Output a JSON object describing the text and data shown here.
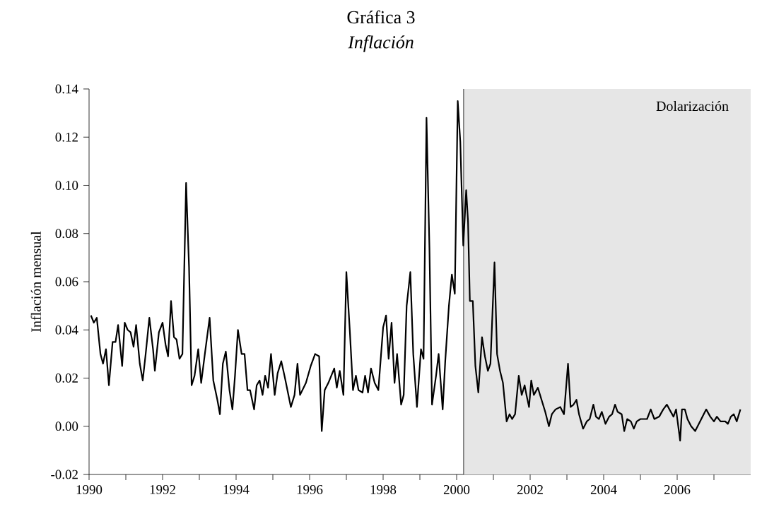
{
  "chart_data": {
    "type": "line",
    "title": "Gráfica 3",
    "subtitle": "Inflación",
    "ylabel": "Inflación mensual",
    "x": [
      1990.05,
      1990.13,
      1990.21,
      1990.31,
      1990.38,
      1990.46,
      1990.54,
      1990.64,
      1990.72,
      1990.79,
      1990.9,
      1990.97,
      1991.05,
      1991.13,
      1991.21,
      1991.28,
      1991.38,
      1991.46,
      1991.54,
      1991.64,
      1991.74,
      1991.79,
      1991.9,
      1992.0,
      1992.08,
      1992.15,
      1992.23,
      1992.31,
      1992.38,
      1992.46,
      1992.54,
      1992.64,
      1992.72,
      1992.79,
      1992.87,
      1992.97,
      1993.05,
      1993.15,
      1993.28,
      1993.38,
      1993.49,
      1993.56,
      1993.64,
      1993.72,
      1993.82,
      1993.9,
      1993.97,
      1994.05,
      1994.15,
      1994.23,
      1994.31,
      1994.38,
      1994.49,
      1994.56,
      1994.64,
      1994.72,
      1994.79,
      1994.87,
      1994.95,
      1995.05,
      1995.13,
      1995.23,
      1995.33,
      1995.49,
      1995.59,
      1995.67,
      1995.74,
      1995.9,
      1996.03,
      1996.15,
      1996.26,
      1996.33,
      1996.41,
      1996.51,
      1996.67,
      1996.74,
      1996.82,
      1996.92,
      1997.0,
      1997.1,
      1997.18,
      1997.26,
      1997.33,
      1997.44,
      1997.51,
      1997.59,
      1997.67,
      1997.77,
      1997.87,
      1998.0,
      1998.08,
      1998.15,
      1998.23,
      1998.31,
      1998.38,
      1998.49,
      1998.56,
      1998.64,
      1998.74,
      1998.82,
      1998.92,
      1999.03,
      1999.1,
      1999.18,
      1999.26,
      1999.33,
      1999.44,
      1999.51,
      1999.62,
      1999.69,
      1999.79,
      1999.87,
      1999.95,
      2000.03,
      2000.1,
      2000.18,
      2000.26,
      2000.31,
      2000.36,
      2000.44,
      2000.51,
      2000.59,
      2000.69,
      2000.77,
      2000.85,
      2000.92,
      2001.03,
      2001.1,
      2001.18,
      2001.26,
      2001.36,
      2001.44,
      2001.51,
      2001.59,
      2001.69,
      2001.77,
      2001.85,
      2001.9,
      2001.97,
      2002.03,
      2002.1,
      2002.21,
      2002.31,
      2002.41,
      2002.51,
      2002.59,
      2002.69,
      2002.82,
      2002.92,
      2003.03,
      2003.1,
      2003.18,
      2003.26,
      2003.33,
      2003.44,
      2003.54,
      2003.62,
      2003.72,
      2003.79,
      2003.87,
      2003.95,
      2004.05,
      2004.15,
      2004.23,
      2004.31,
      2004.38,
      2004.49,
      2004.56,
      2004.64,
      2004.74,
      2004.82,
      2004.9,
      2005.0,
      2005.08,
      2005.18,
      2005.28,
      2005.38,
      2005.51,
      2005.62,
      2005.72,
      2005.79,
      2005.9,
      2005.97,
      2006.08,
      2006.13,
      2006.21,
      2006.28,
      2006.38,
      2006.49,
      2006.59,
      2006.69,
      2006.79,
      2006.9,
      2007.0,
      2007.08,
      2007.18,
      2007.31,
      2007.38,
      2007.46,
      2007.54,
      2007.62,
      2007.72
    ],
    "series": [
      {
        "color": "#000000",
        "values": [
          0.046,
          0.043,
          0.045,
          0.03,
          0.026,
          0.032,
          0.017,
          0.035,
          0.035,
          0.042,
          0.025,
          0.043,
          0.04,
          0.039,
          0.033,
          0.042,
          0.026,
          0.019,
          0.03,
          0.045,
          0.032,
          0.023,
          0.039,
          0.043,
          0.034,
          0.029,
          0.052,
          0.037,
          0.036,
          0.028,
          0.03,
          0.101,
          0.066,
          0.017,
          0.021,
          0.032,
          0.018,
          0.03,
          0.045,
          0.019,
          0.011,
          0.005,
          0.026,
          0.031,
          0.015,
          0.007,
          0.021,
          0.04,
          0.03,
          0.03,
          0.015,
          0.015,
          0.007,
          0.017,
          0.019,
          0.013,
          0.021,
          0.016,
          0.03,
          0.013,
          0.022,
          0.027,
          0.02,
          0.008,
          0.013,
          0.026,
          0.013,
          0.018,
          0.025,
          0.03,
          0.029,
          -0.002,
          0.015,
          0.018,
          0.024,
          0.016,
          0.023,
          0.013,
          0.064,
          0.038,
          0.015,
          0.021,
          0.015,
          0.014,
          0.021,
          0.014,
          0.024,
          0.018,
          0.015,
          0.041,
          0.046,
          0.028,
          0.043,
          0.018,
          0.03,
          0.009,
          0.013,
          0.05,
          0.064,
          0.03,
          0.008,
          0.032,
          0.028,
          0.128,
          0.074,
          0.009,
          0.021,
          0.03,
          0.007,
          0.027,
          0.05,
          0.063,
          0.055,
          0.135,
          0.118,
          0.075,
          0.098,
          0.085,
          0.052,
          0.052,
          0.025,
          0.014,
          0.037,
          0.029,
          0.023,
          0.026,
          0.068,
          0.03,
          0.023,
          0.018,
          0.002,
          0.005,
          0.003,
          0.005,
          0.021,
          0.013,
          0.017,
          0.013,
          0.008,
          0.019,
          0.013,
          0.016,
          0.011,
          0.006,
          0.0,
          0.005,
          0.007,
          0.008,
          0.005,
          0.026,
          0.008,
          0.009,
          0.011,
          0.005,
          -0.001,
          0.002,
          0.003,
          0.009,
          0.004,
          0.003,
          0.006,
          0.001,
          0.004,
          0.005,
          0.009,
          0.006,
          0.005,
          -0.002,
          0.003,
          0.002,
          -0.001,
          0.002,
          0.003,
          0.003,
          0.003,
          0.007,
          0.003,
          0.004,
          0.007,
          0.009,
          0.007,
          0.004,
          0.007,
          -0.006,
          0.007,
          0.007,
          0.003,
          0.0,
          -0.002,
          0.001,
          0.004,
          0.007,
          0.004,
          0.002,
          0.004,
          0.002,
          0.002,
          0.001,
          0.004,
          0.005,
          0.002,
          0.007
        ]
      }
    ],
    "xlim": [
      1990,
      2008
    ],
    "xticks": [
      1990,
      {
        "value": 1991,
        "label": null
      },
      1992,
      {
        "value": 1993,
        "label": null
      },
      1994,
      {
        "value": 1995,
        "label": null
      },
      1996,
      {
        "value": 1997,
        "label": null
      },
      1998,
      {
        "value": 1999,
        "label": null
      },
      2000,
      {
        "value": 2001,
        "label": null
      },
      2002,
      {
        "value": 2003,
        "label": null
      },
      2004,
      {
        "value": 2005,
        "label": null
      },
      2006,
      {
        "value": 2007,
        "label": null
      }
    ],
    "ylim": [
      -0.02,
      0.14
    ],
    "yticks": [
      {
        "value": -0.02,
        "label": "-0.02"
      },
      {
        "value": 0,
        "label": "0.00"
      },
      {
        "value": 0.02,
        "label": "0.02"
      },
      {
        "value": 0.04,
        "label": "0.04"
      },
      {
        "value": 0.06,
        "label": "0.06"
      },
      {
        "value": 0.08,
        "label": "0.08"
      },
      {
        "value": 0.1,
        "label": "0.10"
      },
      {
        "value": 0.12,
        "label": "0.12"
      },
      {
        "value": 0.14,
        "label": "0.14"
      }
    ],
    "bands": [
      {
        "axis": "x",
        "from": 2000.19,
        "to": 2008,
        "label": "Dolarización",
        "color": "#e6e6e6"
      }
    ],
    "ref_lines": [
      {
        "axis": "x",
        "value": 2000.19,
        "label": null
      }
    ],
    "grid": false,
    "marker": "none",
    "line_style": "solid"
  }
}
